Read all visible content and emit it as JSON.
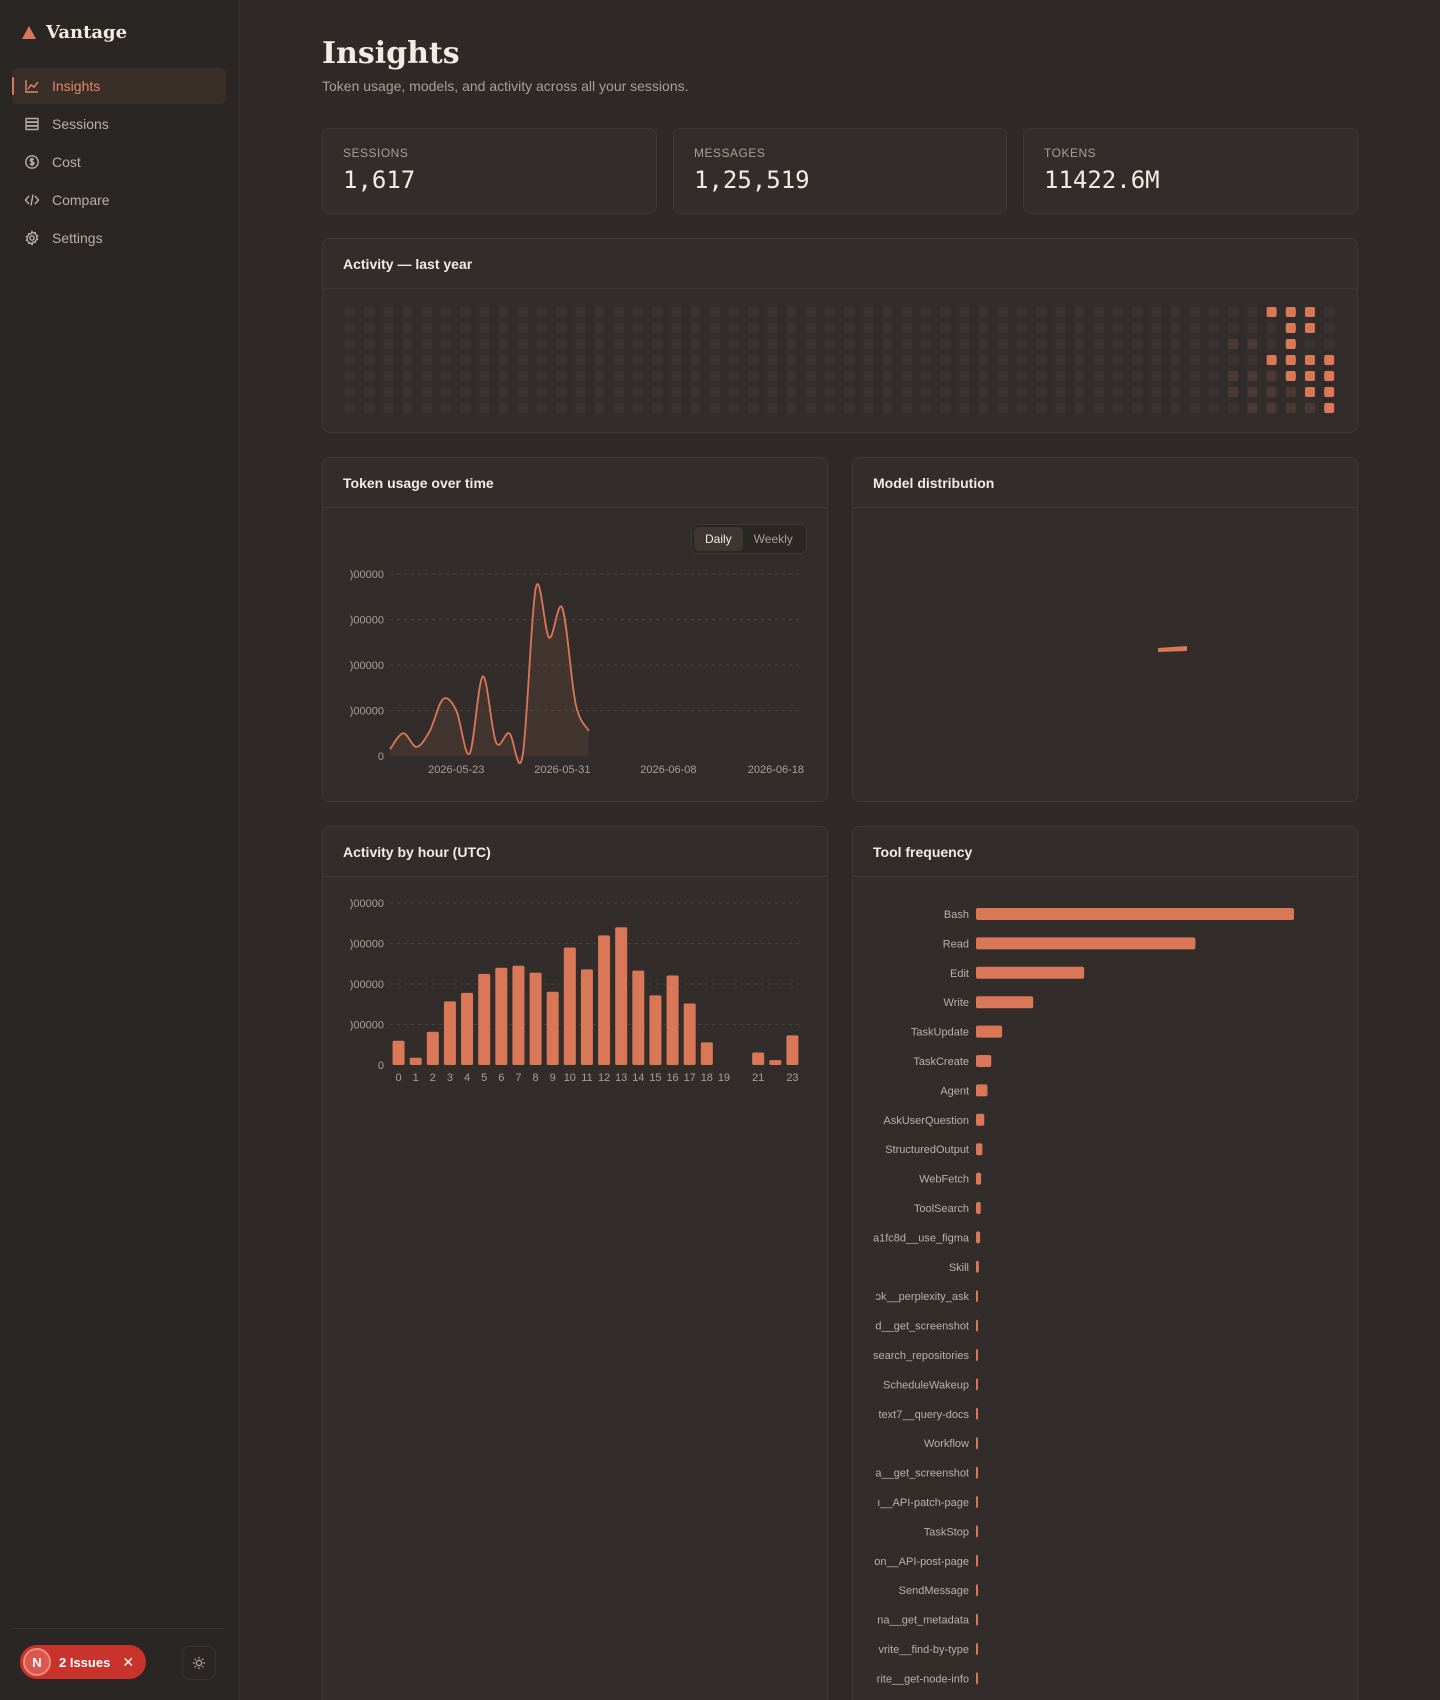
{
  "app": {
    "name": "Vantage"
  },
  "nav": {
    "items": [
      {
        "label": "Insights",
        "icon": "chart-line-icon",
        "active": true
      },
      {
        "label": "Sessions",
        "icon": "database-icon",
        "active": false
      },
      {
        "label": "Cost",
        "icon": "dollar-circle-icon",
        "active": false
      },
      {
        "label": "Compare",
        "icon": "code-compare-icon",
        "active": false
      },
      {
        "label": "Settings",
        "icon": "gear-icon",
        "active": false
      }
    ]
  },
  "footer": {
    "issues_avatar": "N",
    "issues_label": "2 Issues",
    "close_glyph": "✕"
  },
  "page": {
    "title": "Insights",
    "subtitle": "Token usage, models, and activity across all your sessions."
  },
  "stats": [
    {
      "label": "SESSIONS",
      "value": "1,617"
    },
    {
      "label": "MESSAGES",
      "value": "1,25,519"
    },
    {
      "label": "TOKENS",
      "value": "11422.6M"
    }
  ],
  "cards": {
    "activity": "Activity — last year",
    "token_usage": "Token usage over time",
    "model_distribution": "Model distribution",
    "activity_hour": "Activity by hour (UTC)",
    "tool_frequency": "Tool frequency"
  },
  "toggle": {
    "daily": "Daily",
    "weekly": "Weekly",
    "selected": "Daily"
  },
  "colors": {
    "accent": "#d97757",
    "accent_dim": "#6e3d2c",
    "cell_empty": "#3a3532"
  },
  "chart_data": [
    {
      "type": "heatmap",
      "title": "Activity — last year",
      "rows": 7,
      "weeks": 52,
      "active_cells": [
        {
          "week": 48,
          "day": 0,
          "level": 3
        },
        {
          "week": 49,
          "day": 0,
          "level": 3
        },
        {
          "week": 50,
          "day": 0,
          "level": 3
        },
        {
          "week": 49,
          "day": 1,
          "level": 3
        },
        {
          "week": 50,
          "day": 1,
          "level": 3
        },
        {
          "week": 49,
          "day": 2,
          "level": 3
        },
        {
          "week": 48,
          "day": 3,
          "level": 3
        },
        {
          "week": 49,
          "day": 3,
          "level": 3
        },
        {
          "week": 50,
          "day": 3,
          "level": 3
        },
        {
          "week": 51,
          "day": 3,
          "level": 3
        },
        {
          "week": 49,
          "day": 4,
          "level": 3
        },
        {
          "week": 50,
          "day": 4,
          "level": 3
        },
        {
          "week": 51,
          "day": 4,
          "level": 3
        },
        {
          "week": 50,
          "day": 5,
          "level": 3
        },
        {
          "week": 51,
          "day": 5,
          "level": 3
        },
        {
          "week": 51,
          "day": 6,
          "level": 3
        },
        {
          "week": 46,
          "day": 2,
          "level": 1
        },
        {
          "week": 46,
          "day": 4,
          "level": 1
        },
        {
          "week": 46,
          "day": 5,
          "level": 1
        },
        {
          "week": 47,
          "day": 2,
          "level": 1
        },
        {
          "week": 47,
          "day": 4,
          "level": 1
        },
        {
          "week": 47,
          "day": 5,
          "level": 1
        },
        {
          "week": 47,
          "day": 6,
          "level": 1
        },
        {
          "week": 48,
          "day": 4,
          "level": 1
        },
        {
          "week": 48,
          "day": 5,
          "level": 1
        },
        {
          "week": 48,
          "day": 6,
          "level": 1
        },
        {
          "week": 49,
          "day": 5,
          "level": 1
        },
        {
          "week": 49,
          "day": 6,
          "level": 1
        },
        {
          "week": 50,
          "day": 6,
          "level": 1
        }
      ]
    },
    {
      "type": "line",
      "title": "Token usage over time",
      "x_ticks": [
        "2026-05-23",
        "2026-05-31",
        "2026-06-08",
        "2026-06-18"
      ],
      "y_ticks": [
        ")00000",
        ")00000",
        ")00000",
        ")00000",
        "0"
      ],
      "x_range": [
        "2026-05-18",
        "2026-06-18"
      ],
      "series": [
        {
          "points": [
            [
              "2026-05-18",
              0.3
            ],
            [
              "2026-05-19",
              1.0
            ],
            [
              "2026-05-20",
              0.4
            ],
            [
              "2026-05-21",
              1.1
            ],
            [
              "2026-05-22",
              2.5
            ],
            [
              "2026-05-23",
              2.0
            ],
            [
              "2026-05-24",
              0.1
            ],
            [
              "2026-05-25",
              3.5
            ],
            [
              "2026-05-26",
              0.6
            ],
            [
              "2026-05-27",
              1.0
            ],
            [
              "2026-05-28",
              0.0
            ],
            [
              "2026-05-29",
              7.4
            ],
            [
              "2026-05-30",
              5.2
            ],
            [
              "2026-05-31",
              6.5
            ],
            [
              "2026-06-01",
              2.3
            ],
            [
              "2026-06-02",
              1.1
            ]
          ]
        }
      ],
      "ylim": [
        0,
        8
      ]
    },
    {
      "type": "pie",
      "title": "Model distribution",
      "slices": []
    },
    {
      "type": "bar",
      "title": "Activity by hour (UTC)",
      "categories": [
        "0",
        "1",
        "2",
        "3",
        "4",
        "5",
        "6",
        "7",
        "8",
        "9",
        "10",
        "11",
        "12",
        "13",
        "14",
        "15",
        "16",
        "17",
        "18",
        "19",
        "20",
        "21",
        "22",
        "23"
      ],
      "x_labels": [
        "0",
        "1",
        "2",
        "3",
        "4",
        "5",
        "6",
        "7",
        "8",
        "9",
        "10",
        "11",
        "12",
        "13",
        "14",
        "15",
        "16",
        "17",
        "18",
        "19",
        "",
        "21",
        "",
        "23"
      ],
      "values": [
        0.6,
        0.18,
        0.82,
        1.57,
        1.78,
        2.25,
        2.4,
        2.45,
        2.28,
        1.81,
        2.9,
        2.36,
        3.2,
        3.4,
        2.33,
        1.72,
        2.21,
        1.52,
        0.56,
        0,
        0,
        0.31,
        0.12,
        0.73
      ],
      "y_ticks": [
        ")00000",
        ")00000",
        ")00000",
        ")00000",
        "0"
      ],
      "ylim": [
        0,
        4
      ]
    },
    {
      "type": "bar",
      "orientation": "horizontal",
      "title": "Tool frequency",
      "categories": [
        "Bash",
        "Read",
        "Edit",
        "Write",
        "TaskUpdate",
        "TaskCreate",
        "Agent",
        "AskUserQuestion",
        "StructuredOutput",
        "WebFetch",
        "ToolSearch",
        "a1fc8d__use_figma",
        "Skill",
        "ɔk__perplexity_ask",
        "d__get_screenshot",
        "search_repositories",
        "ScheduleWakeup",
        "text7__query-docs",
        "Workflow",
        "a__get_screenshot",
        "ı__API-patch-page",
        "TaskStop",
        "on__API-post-page",
        "SendMessage",
        "na__get_metadata",
        "vrite__find-by-type",
        "rite__get-node-info"
      ],
      "values": [
        100,
        69,
        34,
        18,
        8.2,
        4.8,
        3.6,
        2.6,
        2.0,
        1.6,
        1.5,
        1.3,
        0.9,
        0.6,
        0.6,
        0.4,
        0.4,
        0.4,
        0.3,
        0.3,
        0.3,
        0.3,
        0.3,
        0.2,
        0.2,
        0.2,
        0.2
      ]
    }
  ]
}
